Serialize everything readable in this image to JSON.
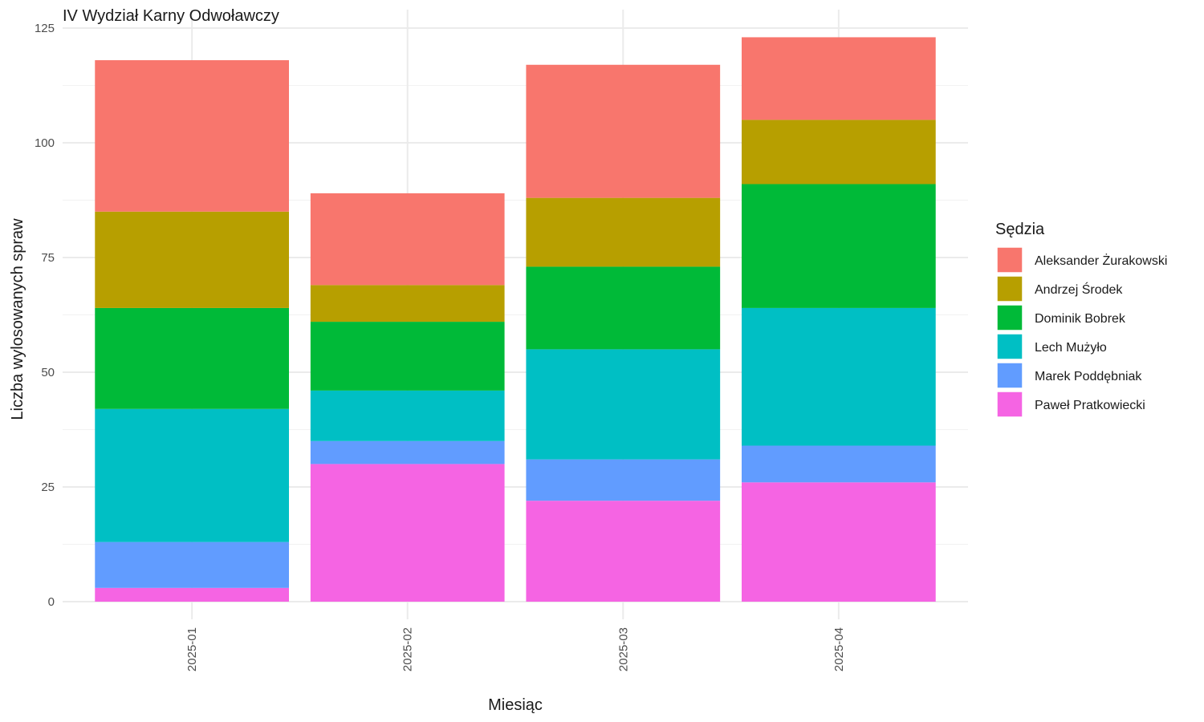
{
  "chart_data": {
    "type": "bar",
    "stacked": true,
    "title": "IV Wydział Karny Odwoławczy",
    "xlabel": "Miesiąc",
    "ylabel": "Liczba wylosowanych spraw",
    "ylim": [
      0,
      125
    ],
    "yticks": [
      0,
      25,
      50,
      75,
      100,
      125
    ],
    "grid": true,
    "categories": [
      "2025-01",
      "2025-02",
      "2025-03",
      "2025-04"
    ],
    "legend": {
      "title": "Sędzia",
      "position": "right"
    },
    "series": [
      {
        "name": "Aleksander Żurakowski",
        "color": "#F8766D",
        "values": [
          33,
          20,
          29,
          18
        ]
      },
      {
        "name": "Andrzej Środek",
        "color": "#B79F00",
        "values": [
          21,
          8,
          15,
          14
        ]
      },
      {
        "name": "Dominik Bobrek",
        "color": "#00BA38",
        "values": [
          22,
          15,
          18,
          27
        ]
      },
      {
        "name": "Lech Mużyło",
        "color": "#00BFC4",
        "values": [
          29,
          11,
          24,
          30
        ]
      },
      {
        "name": "Marek Poddębniak",
        "color": "#619CFF",
        "values": [
          10,
          5,
          9,
          8
        ]
      },
      {
        "name": "Paweł Pratkowiecki",
        "color": "#F564E3",
        "values": [
          3,
          30,
          22,
          26
        ]
      }
    ]
  }
}
